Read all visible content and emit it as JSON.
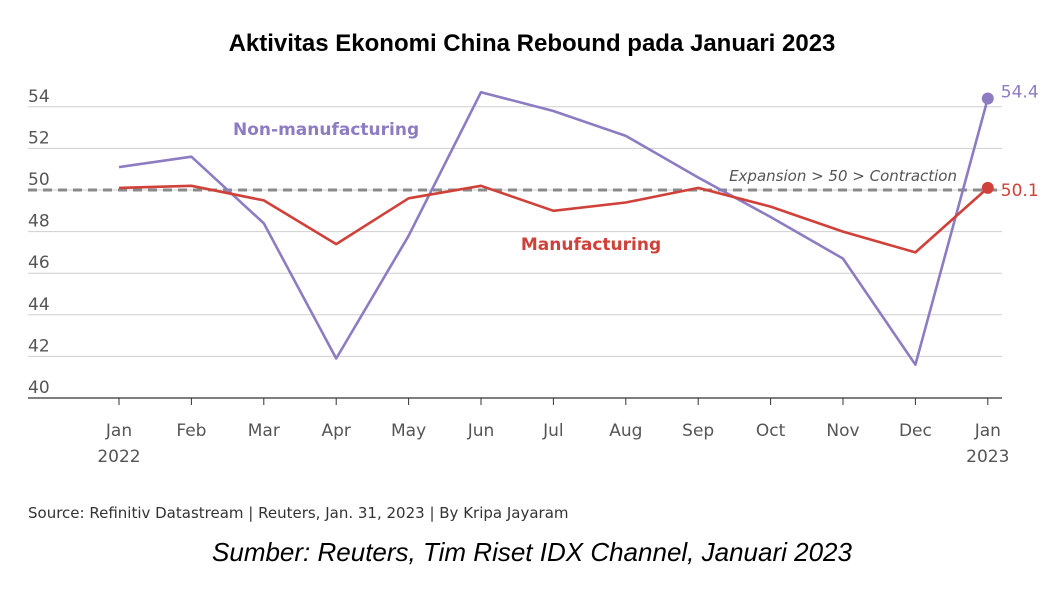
{
  "title": "Aktivitas Ekonomi China Rebound pada Januari 2023",
  "source": "Source: Refinitiv Datastream | Reuters, Jan. 31, 2023 | By Kripa Jayaram",
  "caption": "Sumber: Reuters, Tim Riset IDX Channel, Januari 2023",
  "chart_data": {
    "type": "line",
    "categories": [
      "Jan",
      "Feb",
      "Mar",
      "Apr",
      "May",
      "Jun",
      "Jul",
      "Aug",
      "Sep",
      "Oct",
      "Nov",
      "Dec",
      "Jan"
    ],
    "x_sublabels": [
      "2022",
      "",
      "",
      "",
      "",
      "",
      "",
      "",
      "",
      "",
      "",
      "",
      "2023"
    ],
    "yticks": [
      40,
      42,
      44,
      46,
      48,
      50,
      52,
      54
    ],
    "ylim": [
      40,
      55
    ],
    "grid": true,
    "series": [
      {
        "name": "Non-manufacturing",
        "color": "#8e7cc3",
        "values": [
          51.1,
          51.6,
          48.4,
          41.9,
          47.8,
          54.7,
          53.8,
          52.6,
          50.6,
          48.7,
          46.7,
          41.6,
          54.4
        ],
        "end_label": "54.4"
      },
      {
        "name": "Manufacturing",
        "color": "#d0413a",
        "values": [
          50.1,
          50.2,
          49.5,
          47.4,
          49.6,
          50.2,
          49.0,
          49.4,
          50.1,
          49.2,
          48.0,
          47.0,
          50.1
        ],
        "end_label": "50.1"
      }
    ],
    "reference_line": {
      "value": 50,
      "label": "Expansion > 50 > Contraction"
    }
  }
}
